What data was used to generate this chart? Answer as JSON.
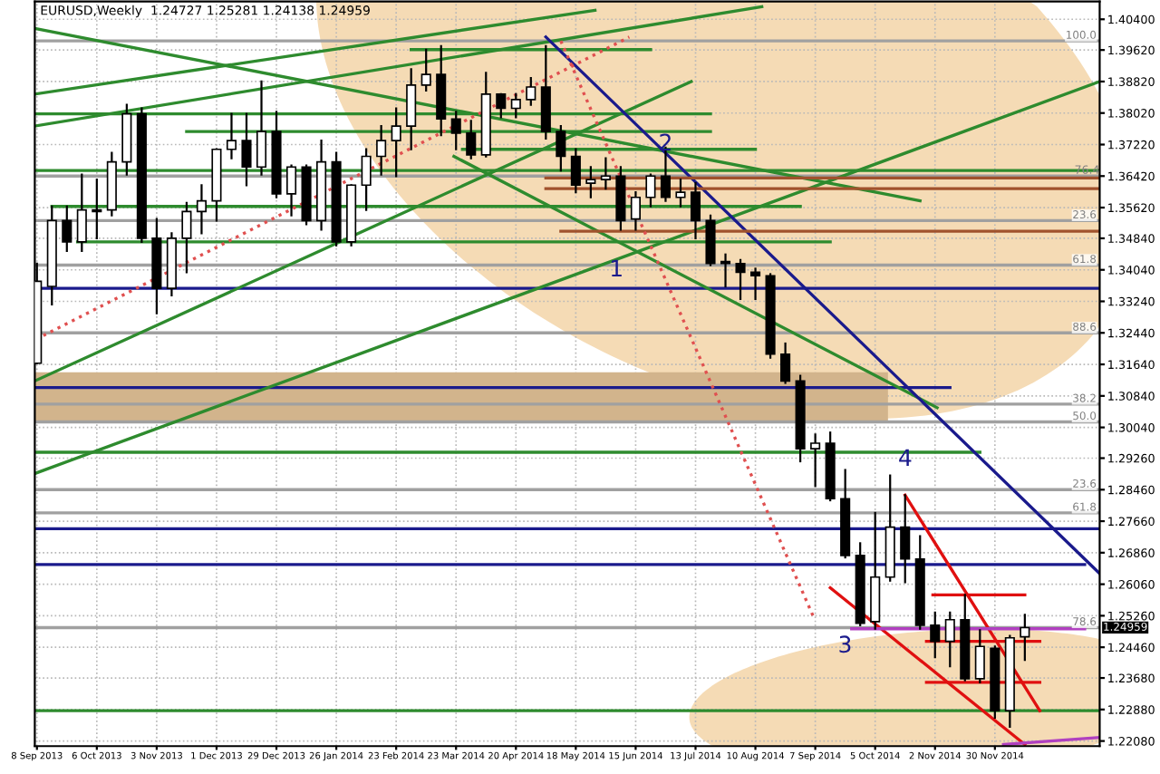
{
  "chart_data": {
    "type": "candlestick",
    "title": "EURUSD,Weekly  1.24727 1.25281 1.24138 1.24959",
    "color": "#000000",
    "x": [
      "2013-09-08",
      "2013-09-15",
      "2013-09-22",
      "2013-09-29",
      "2013-10-06",
      "2013-10-13",
      "2013-10-20",
      "2013-10-27",
      "2013-11-03",
      "2013-11-10",
      "2013-11-17",
      "2013-11-24",
      "2013-12-01",
      "2013-12-08",
      "2013-12-15",
      "2013-12-22",
      "2013-12-29",
      "2014-01-05",
      "2014-01-12",
      "2014-01-19",
      "2014-01-26",
      "2014-02-02",
      "2014-02-09",
      "2014-02-16",
      "2014-02-23",
      "2014-03-02",
      "2014-03-09",
      "2014-03-16",
      "2014-03-23",
      "2014-03-30",
      "2014-04-06",
      "2014-04-13",
      "2014-04-20",
      "2014-04-27",
      "2014-05-04",
      "2014-05-11",
      "2014-05-18",
      "2014-05-25",
      "2014-06-01",
      "2014-06-08",
      "2014-06-15",
      "2014-06-22",
      "2014-06-29",
      "2014-07-06",
      "2014-07-13",
      "2014-07-20",
      "2014-07-27",
      "2014-08-03",
      "2014-08-10",
      "2014-08-17",
      "2014-08-24",
      "2014-08-31",
      "2014-09-07",
      "2014-09-14",
      "2014-09-21",
      "2014-09-28",
      "2014-10-05",
      "2014-10-12",
      "2014-10-19",
      "2014-10-26",
      "2014-11-02",
      "2014-11-09",
      "2014-11-16",
      "2014-11-23",
      "2014-11-30",
      "2014-12-07",
      "2014-12-14"
    ],
    "ohlc": [
      [
        1.3167,
        1.342,
        1.3167,
        1.3375
      ],
      [
        1.3362,
        1.3565,
        1.3316,
        1.3529
      ],
      [
        1.3529,
        1.3565,
        1.3452,
        1.3475
      ],
      [
        1.3475,
        1.3646,
        1.3452,
        1.3556
      ],
      [
        1.3552,
        1.3633,
        1.3484,
        1.3556
      ],
      [
        1.3556,
        1.3701,
        1.3542,
        1.3678
      ],
      [
        1.3678,
        1.3823,
        1.3646,
        1.38
      ],
      [
        1.38,
        1.3814,
        1.3475,
        1.3484
      ],
      [
        1.3484,
        1.3533,
        1.3294,
        1.3357
      ],
      [
        1.3357,
        1.3497,
        1.3339,
        1.3484
      ],
      [
        1.3484,
        1.3574,
        1.3398,
        1.3552
      ],
      [
        1.3552,
        1.3619,
        1.3497,
        1.3579
      ],
      [
        1.3579,
        1.371,
        1.3529,
        1.371
      ],
      [
        1.371,
        1.38,
        1.3687,
        1.3732
      ],
      [
        1.3732,
        1.38,
        1.3619,
        1.3665
      ],
      [
        1.3665,
        1.3882,
        1.3646,
        1.3755
      ],
      [
        1.3755,
        1.3805,
        1.3588,
        1.3597
      ],
      [
        1.3597,
        1.3669,
        1.3542,
        1.3665
      ],
      [
        1.3665,
        1.3669,
        1.352,
        1.3529
      ],
      [
        1.3529,
        1.3732,
        1.3506,
        1.3678
      ],
      [
        1.3678,
        1.3701,
        1.3466,
        1.3475
      ],
      [
        1.3475,
        1.3619,
        1.3466,
        1.3619
      ],
      [
        1.3619,
        1.371,
        1.3556,
        1.3692
      ],
      [
        1.3692,
        1.3769,
        1.3646,
        1.3732
      ],
      [
        1.3732,
        1.3814,
        1.3642,
        1.3769
      ],
      [
        1.3769,
        1.3913,
        1.371,
        1.3873
      ],
      [
        1.3873,
        1.3963,
        1.3859,
        1.39
      ],
      [
        1.39,
        1.3972,
        1.3746,
        1.3787
      ],
      [
        1.3787,
        1.3805,
        1.371,
        1.3751
      ],
      [
        1.3751,
        1.3782,
        1.3687,
        1.3696
      ],
      [
        1.3696,
        1.3904,
        1.3692,
        1.385
      ],
      [
        1.385,
        1.385,
        1.3791,
        1.3814
      ],
      [
        1.3814,
        1.385,
        1.3791,
        1.3836
      ],
      [
        1.3836,
        1.3891,
        1.3823,
        1.3868
      ],
      [
        1.3868,
        1.3972,
        1.3737,
        1.3755
      ],
      [
        1.3755,
        1.3769,
        1.3656,
        1.3692
      ],
      [
        1.3692,
        1.371,
        1.3601,
        1.3619
      ],
      [
        1.3624,
        1.3665,
        1.3588,
        1.3633
      ],
      [
        1.3633,
        1.3687,
        1.361,
        1.3642
      ],
      [
        1.3642,
        1.3665,
        1.3506,
        1.3529
      ],
      [
        1.3533,
        1.3601,
        1.3506,
        1.3588
      ],
      [
        1.3588,
        1.3646,
        1.3565,
        1.3642
      ],
      [
        1.3642,
        1.3714,
        1.3579,
        1.3588
      ],
      [
        1.3588,
        1.3633,
        1.3565,
        1.3601
      ],
      [
        1.3601,
        1.3624,
        1.3484,
        1.3529
      ],
      [
        1.3529,
        1.3542,
        1.3416,
        1.342
      ],
      [
        1.3425,
        1.3443,
        1.3362,
        1.342
      ],
      [
        1.342,
        1.3429,
        1.333,
        1.3398
      ],
      [
        1.3398,
        1.3407,
        1.333,
        1.3389
      ],
      [
        1.3389,
        1.3393,
        1.3181,
        1.319
      ],
      [
        1.319,
        1.3217,
        1.3117,
        1.3122
      ],
      [
        1.3122,
        1.3135,
        1.2918,
        1.295
      ],
      [
        1.295,
        1.2986,
        1.2855,
        1.2964
      ],
      [
        1.2964,
        1.2991,
        1.2819,
        1.2823
      ],
      [
        1.2823,
        1.2896,
        1.2674,
        1.2679
      ],
      [
        1.2679,
        1.271,
        1.2502,
        1.2507
      ],
      [
        1.2511,
        1.2787,
        1.2493,
        1.2624
      ],
      [
        1.2624,
        1.2882,
        1.2615,
        1.2751
      ],
      [
        1.2751,
        1.2832,
        1.2611,
        1.267
      ],
      [
        1.267,
        1.2728,
        1.2493,
        1.2502
      ],
      [
        1.2502,
        1.2534,
        1.2421,
        1.2461
      ],
      [
        1.2461,
        1.2534,
        1.2398,
        1.2516
      ],
      [
        1.2516,
        1.2579,
        1.2362,
        1.2366
      ],
      [
        1.2366,
        1.2489,
        1.2357,
        1.2448
      ],
      [
        1.2443,
        1.2448,
        1.2267,
        1.2285
      ],
      [
        1.2285,
        1.2475,
        1.2244,
        1.247
      ],
      [
        1.24727,
        1.25281,
        1.24138,
        1.24959
      ]
    ],
    "series": [
      {
        "type": "line",
        "color": "#1a1a8c",
        "x": [
          "2013-09-07",
          "2014-10-11",
          "2014-11-09"
        ],
        "values": [
          1.3105,
          1.3105,
          1.3105
        ],
        "lower": [
          1.3018,
          1.3018,
          null
        ],
        "upper": [
          1.3144,
          1.3144,
          null
        ]
      },
      {
        "type": "line",
        "color": "#a0a0a0",
        "x": [
          "2013-09-07",
          "2015-01-18"
        ],
        "values": [
          1.3642,
          1.3642
        ]
      },
      {
        "type": "line",
        "color": "#2e8b2e",
        "x": [
          "2013-09-07",
          "2015-01-18"
        ],
        "values": [
          1.3656,
          1.3656
        ]
      },
      {
        "type": "line",
        "color": "#2e8b2e",
        "x": [
          "2013-09-07",
          "2015-01-18"
        ],
        "values": [
          1.2887,
          1.3882
        ]
      },
      {
        "type": "line",
        "color": "#2e8b2e",
        "x": [
          "2013-09-07",
          "2014-07-11"
        ],
        "values": [
          1.3122,
          1.3882
        ]
      },
      {
        "type": "line",
        "color": "#2e8b2e",
        "x": [
          "2013-09-07",
          "2014-05-27"
        ],
        "values": [
          1.385,
          1.4063
        ]
      },
      {
        "type": "line",
        "color": "#2e8b2e",
        "x": [
          "2013-09-07",
          "2014-08-13"
        ],
        "values": [
          1.3769,
          1.4072
        ]
      },
      {
        "type": "line",
        "color": "#2e8b2e",
        "x": [
          "2013-09-07",
          "2014-10-26"
        ],
        "values": [
          1.4017,
          1.3579
        ]
      },
      {
        "type": "line",
        "color": "#2e8b2e",
        "x": [
          "2014-03-22",
          "2014-11-03"
        ],
        "values": [
          1.3692,
          1.3054
        ]
      },
      {
        "type": "line",
        "color": "#2e8b2e",
        "x": [
          "2014-03-02",
          "2014-06-22"
        ],
        "values": [
          1.3963,
          1.3963
        ]
      },
      {
        "type": "line",
        "color": "#2e8b2e",
        "x": [
          "2013-09-07",
          "2014-07-20"
        ],
        "values": [
          1.38,
          1.38
        ]
      },
      {
        "type": "line",
        "color": "#2e8b2e",
        "x": [
          "2013-11-17",
          "2014-07-20"
        ],
        "values": [
          1.3755,
          1.3755
        ]
      },
      {
        "type": "line",
        "color": "#2e8b2e",
        "x": [
          "2014-03-26",
          "2014-08-10"
        ],
        "values": [
          1.371,
          1.371
        ]
      },
      {
        "type": "line",
        "color": "#2e8b2e",
        "x": [
          "2013-09-15",
          "2014-08-31"
        ],
        "values": [
          1.3565,
          1.3565
        ]
      },
      {
        "type": "line",
        "color": "#2e8b2e",
        "x": [
          "2013-09-27",
          "2014-09-14"
        ],
        "values": [
          1.3475,
          1.3475
        ]
      },
      {
        "type": "line",
        "color": "#2e8b2e",
        "x": [
          "2013-09-07",
          "2014-11-23"
        ],
        "values": [
          1.2941,
          1.2941
        ]
      },
      {
        "type": "line",
        "color": "#1a1a8c",
        "x": [
          "2014-05-04",
          "2015-01-18"
        ],
        "values": [
          1.3995,
          1.2633
        ]
      },
      {
        "type": "line",
        "color": "#1a1a8c",
        "x": [
          "2013-09-07",
          "2015-01-11"
        ],
        "values": [
          1.2656,
          1.2656
        ]
      },
      {
        "type": "line",
        "color": "#a0522d",
        "x": [
          "2014-05-04",
          "2015-01-18"
        ],
        "values": [
          1.3637,
          1.3637
        ]
      },
      {
        "type": "line",
        "color": "#a0522d",
        "x": [
          "2014-05-04",
          "2015-01-18"
        ],
        "values": [
          1.361,
          1.361
        ]
      },
      {
        "type": "line",
        "color": "#a0522d",
        "x": [
          "2014-05-11",
          "2015-01-18"
        ],
        "values": [
          1.3502,
          1.3502
        ]
      },
      {
        "type": "line",
        "color": "#e01010",
        "x": [
          "2014-11-01",
          "2014-12-14"
        ],
        "values": [
          1.2579,
          1.2579
        ]
      },
      {
        "type": "line",
        "color": "#e01010",
        "x": [
          "2014-10-29",
          "2014-12-21"
        ],
        "values": [
          1.2461,
          1.2461
        ]
      },
      {
        "type": "line",
        "color": "#e01010",
        "x": [
          "2014-10-29",
          "2014-12-21"
        ],
        "values": [
          1.2357,
          1.2357
        ]
      },
      {
        "type": "line",
        "color": "#e01010",
        "x": [
          "2014-10-19",
          "2014-12-21"
        ],
        "values": [
          1.2832,
          1.2285
        ]
      },
      {
        "type": "line",
        "color": "#e01010",
        "x": [
          "2014-09-14",
          "2014-12-14"
        ],
        "values": [
          1.2597,
          1.2199
        ]
      },
      {
        "type": "line",
        "color": "#e05050",
        "line_style": "dotted",
        "x": [
          "2013-09-11",
          "2014-06-12"
        ],
        "values": [
          1.3237,
          1.3995
        ]
      },
      {
        "type": "line",
        "color": "#e05050",
        "line_style": "dotted",
        "x": [
          "2014-05-11",
          "2014-09-06"
        ],
        "values": [
          1.3985,
          1.2525
        ]
      },
      {
        "type": "line",
        "color": "#b040c0",
        "x": [
          "2014-09-24",
          "2015-01-11"
        ],
        "values": [
          1.2493,
          1.2493
        ]
      },
      {
        "type": "line",
        "color": "#b040c0",
        "x": [
          "2014-12-04",
          "2015-01-18"
        ],
        "values": [
          1.2199,
          1.2217
        ]
      }
    ],
    "ref_lines": [
      {
        "axis": "y",
        "value": 1.3985,
        "color": "#a0a0a0"
      },
      {
        "axis": "y",
        "value": 1.3529,
        "color": "#a0a0a0"
      },
      {
        "axis": "y",
        "value": 1.3416,
        "color": "#a0a0a0"
      },
      {
        "axis": "y",
        "value": 1.3244,
        "color": "#a0a0a0"
      },
      {
        "axis": "y",
        "value": 1.3063,
        "color": "#a0a0a0"
      },
      {
        "axis": "y",
        "value": 1.3018,
        "color": "#a0a0a0"
      },
      {
        "axis": "y",
        "value": 1.2846,
        "color": "#a0a0a0"
      },
      {
        "axis": "y",
        "value": 1.2787,
        "color": "#a0a0a0"
      },
      {
        "axis": "y",
        "value": 1.24959,
        "label": "1.24959",
        "color": "#a0a0a0"
      },
      {
        "axis": "y",
        "value": 1.3357,
        "color": "#1a1a8c"
      },
      {
        "axis": "y",
        "value": 1.2747,
        "color": "#1a1a8c"
      },
      {
        "axis": "y",
        "value": 1.2285,
        "color": "#2e8b2e"
      }
    ],
    "annotations": [
      {
        "text": "1",
        "x": "2014-06-06",
        "y": 1.3403
      },
      {
        "text": "2",
        "x": "2014-06-29",
        "y": 1.3723
      },
      {
        "text": "3",
        "x": "2014-09-28",
        "y": 1.2502
      },
      {
        "text": "4",
        "x": "2014-10-12",
        "y": 1.2882
      },
      "100.0",
      "23.6",
      "61.8",
      "88.6",
      "38.2",
      "50.0",
      "23.6",
      "61.8",
      "78.6",
      {
        "text": "76.4",
        "x": "2015-01-18",
        "y": 1.3642
      }
    ],
    "xlim": [
      "2013-09-07",
      "2015-01-18"
    ],
    "xticks": [
      {
        "value": "2013-09-08",
        "label": "8 Sep 2013"
      },
      {
        "value": "2013-10-06",
        "label": "6 Oct 2013"
      },
      {
        "value": "2013-11-03",
        "label": "3 Nov 2013"
      },
      {
        "value": "2013-12-01",
        "label": "1 Dec 2013"
      },
      {
        "value": "2013-12-29",
        "label": "29 Dec 2013"
      },
      {
        "value": "2014-01-26",
        "label": "26 Jan 2014"
      },
      {
        "value": "2014-02-23",
        "label": "23 Feb 2014"
      },
      {
        "value": "2014-03-23",
        "label": "23 Mar 2014"
      },
      {
        "value": "2014-04-20",
        "label": "20 Apr 2014"
      },
      {
        "value": "2014-05-18",
        "label": "18 May 2014"
      },
      {
        "value": "2014-06-15",
        "label": "15 Jun 2014"
      },
      {
        "value": "2014-07-13",
        "label": "13 Jul 2014"
      },
      {
        "value": "2014-08-10",
        "label": "10 Aug 2014"
      },
      {
        "value": "2014-09-07",
        "label": "7 Sep 2014"
      },
      {
        "value": "2014-10-05",
        "label": "5 Oct 2014"
      },
      {
        "value": "2014-11-02",
        "label": "2 Nov 2014"
      },
      {
        "value": "2014-11-30",
        "label": "30 Nov 2014"
      }
    ],
    "ylim": [
      1.2195,
      1.4085
    ],
    "yticks": [
      {
        "value": 1.404,
        "label": "1.40400"
      },
      {
        "value": 1.3962,
        "label": "1.39620"
      },
      {
        "value": 1.3882,
        "label": "1.38820"
      },
      {
        "value": 1.3802,
        "label": "1.38020"
      },
      {
        "value": 1.3722,
        "label": "1.37220"
      },
      {
        "value": 1.3642,
        "label": "1.36420"
      },
      {
        "value": 1.3562,
        "label": "1.35620"
      },
      {
        "value": 1.3484,
        "label": "1.34840"
      },
      {
        "value": 1.3404,
        "label": "1.34040"
      },
      {
        "value": 1.3324,
        "label": "1.33240"
      },
      {
        "value": 1.3244,
        "label": "1.32440"
      },
      {
        "value": 1.3164,
        "label": "1.31640"
      },
      {
        "value": 1.3084,
        "label": "1.30840"
      },
      {
        "value": 1.3004,
        "label": "1.30040"
      },
      {
        "value": 1.2926,
        "label": "1.29260"
      },
      {
        "value": 1.2846,
        "label": "1.28460"
      },
      {
        "value": 1.2766,
        "label": "1.27660"
      },
      {
        "value": 1.2686,
        "label": "1.26860"
      },
      {
        "value": 1.2606,
        "label": "1.26060"
      },
      {
        "value": 1.2526,
        "label": "1.25260"
      },
      {
        "value": 1.2446,
        "label": "1.24460"
      },
      {
        "value": 1.2368,
        "label": "1.23680"
      },
      {
        "value": 1.2288,
        "label": "1.22880"
      },
      {
        "value": 1.2208,
        "label": "1.22080"
      }
    ],
    "grid": true
  }
}
